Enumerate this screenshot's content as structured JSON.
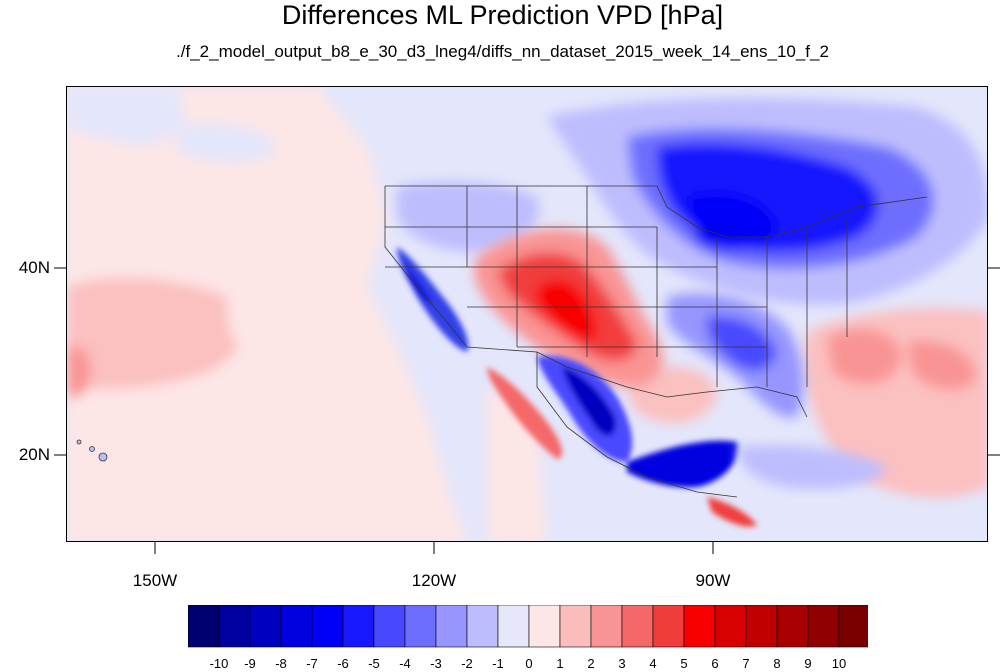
{
  "figure": {
    "title": "Differences ML Prediction VPD [hPa]",
    "subtitle": "./f_2_model_output_b8_e_30_d3_lneg4/diffs_nn_dataset_2015_week_14_ens_10_f_2"
  },
  "map": {
    "projection": "cylindrical equidistant",
    "lon_range": [
      -160,
      -61
    ],
    "lat_range": [
      11,
      60
    ],
    "lat_labels": [
      "40N",
      "20N"
    ],
    "lon_labels": [
      "150W",
      "120W",
      "90W"
    ],
    "background_level": "0 to 1",
    "features": [
      {
        "name": "southwest-us-positive-anomaly",
        "value_range": "4 to 6",
        "color": "#f02020"
      },
      {
        "name": "mexico-highlands-negative-anomaly",
        "value_range": "-6 to -8",
        "color": "#1a28d8"
      },
      {
        "name": "great-lakes-negative-anomaly",
        "value_range": "-4 to -6",
        "color": "#2030f0"
      },
      {
        "name": "southeast-us-negative-anomaly",
        "value_range": "-2 to -5",
        "color": "#3848f0"
      },
      {
        "name": "atlantic-positive-anomaly",
        "value_range": "1 to 3",
        "color": "#fa9a9a"
      },
      {
        "name": "east-pacific-positive-anomaly",
        "value_range": "1 to 2",
        "color": "#fbc0c0"
      },
      {
        "name": "california-negative-anomaly",
        "value_range": "-3 to -5",
        "color": "#3040e8"
      },
      {
        "name": "central-america-negative-anomaly",
        "value_range": "-5 to -7",
        "color": "#1020e0"
      }
    ]
  },
  "colorbar": {
    "labels": [
      "-10",
      "-9",
      "-8",
      "-7",
      "-6",
      "-5",
      "-4",
      "-3",
      "-2",
      "-1",
      "0",
      "1",
      "2",
      "3",
      "4",
      "5",
      "6",
      "7",
      "8",
      "9",
      "10"
    ],
    "colors": [
      "#000070",
      "#0000a0",
      "#0000c0",
      "#0000e0",
      "#0000f8",
      "#1818ff",
      "#4848ff",
      "#6e6efe",
      "#9696fe",
      "#bdbdfe",
      "#e6e8fa",
      "#fde6e6",
      "#fbbcbc",
      "#f99494",
      "#f56868",
      "#f13c3c",
      "#f80000",
      "#d80000",
      "#c00000",
      "#a80000",
      "#900000",
      "#780000"
    ]
  }
}
